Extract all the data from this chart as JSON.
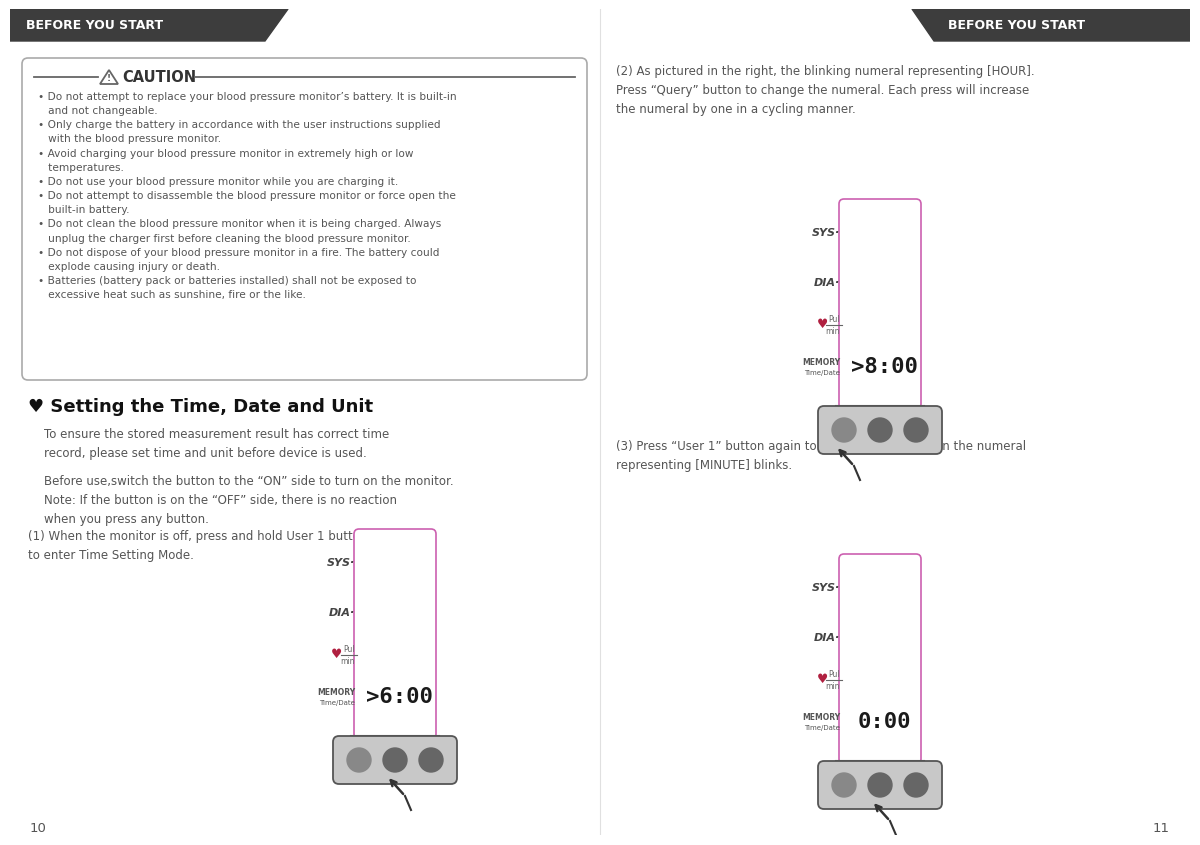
{
  "bg_color": "#ffffff",
  "header_bg": "#3d3d3d",
  "header_text_color": "#ffffff",
  "header_text": "BEFORE YOU START",
  "pink_border": "#cc60b0",
  "pink_fill": "#ffffff",
  "body_color": "#555555",
  "dark_color": "#111111",
  "caution_text": "• Do not attempt to replace your blood pressure monitor’s battery. It is built-in\n   and not changeable.\n• Only charge the battery in accordance with the user instructions supplied\n   with the blood pressure monitor.\n• Avoid charging your blood pressure monitor in extremely high or low\n   temperatures.\n• Do not use your blood pressure monitor while you are charging it.\n• Do not attempt to disassemble the blood pressure monitor or force open the\n   built-in battery.\n• Do not clean the blood pressure monitor when it is being charged. Always\n   unplug the charger first before cleaning the blood pressure monitor.\n• Do not dispose of your blood pressure monitor in a fire. The battery could\n   explode causing injury or death.\n• Batteries (battery pack or batteries installed) shall not be exposed to\n   excessive heat such as sunshine, fire or the like.",
  "section_title": "♥ Setting the Time, Date and Unit",
  "para1": "To ensure the stored measurement result has correct time\nrecord, please set time and unit before device is used.",
  "para2": "Before use,switch the button to the “ON” side to turn on the monitor.\nNote: If the button is on the “OFF” side, there is no reaction\nwhen you press any button.",
  "step1": "(1) When the monitor is off, press and hold User 1 button for 3s\nto enter Time Setting Mode.",
  "step2": "(2) As pictured in the right, the blinking numeral representing [HOUR].\nPress “Query” button to change the numeral. Each press will increase\nthe numeral by one in a cycling manner.",
  "step3": "(3) Press “User 1” button again to confirm [HOUR]. Then the numeral\nrepresenting [MINUTE] blinks.",
  "page_left": "10",
  "page_right": "11"
}
